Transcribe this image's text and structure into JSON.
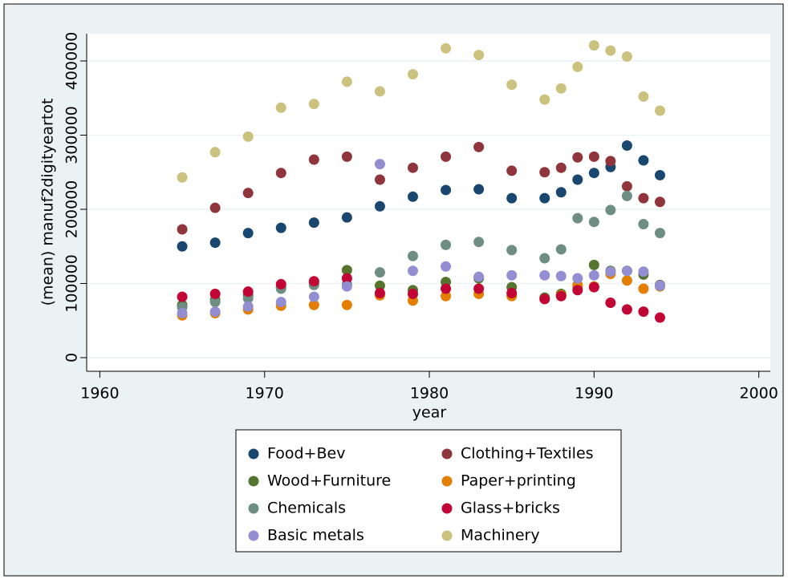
{
  "chart_data": {
    "type": "scatter",
    "x_label": "year",
    "y_label": "(mean) manuf2digityeartot",
    "x": [
      1965,
      1967,
      1969,
      1971,
      1973,
      1975,
      1977,
      1979,
      1981,
      1983,
      1985,
      1987,
      1988,
      1989,
      1990,
      1991,
      1992,
      1993,
      1994
    ],
    "xlim": [
      1959.2,
      2000.7
    ],
    "xticks": [
      1960,
      1970,
      1980,
      1990,
      2000
    ],
    "ylim": [
      -18400,
      436800
    ],
    "yticks": [
      0,
      100000,
      200000,
      300000,
      400000
    ],
    "grid": true,
    "series": [
      {
        "name": "Food+Bev",
        "color": "#1a476f",
        "values": [
          150000,
          155000,
          168000,
          175000,
          182000,
          189000,
          204000,
          217000,
          226000,
          227000,
          215000,
          215000,
          223000,
          240000,
          249000,
          257000,
          286000,
          266000,
          246000
        ]
      },
      {
        "name": "Clothing+Textiles",
        "color": "#90353b",
        "values": [
          173000,
          202000,
          222000,
          249000,
          267000,
          271000,
          240000,
          256000,
          271000,
          284000,
          252000,
          250000,
          256000,
          270000,
          271000,
          265000,
          231000,
          215000,
          210000
        ]
      },
      {
        "name": "Wood+Furniture",
        "color": "#55752f",
        "values": [
          71000,
          78000,
          84000,
          95000,
          100000,
          118000,
          97000,
          91000,
          102000,
          107000,
          95000,
          81000,
          86000,
          96000,
          125000,
          117000,
          117000,
          112000,
          98000
        ]
      },
      {
        "name": "Paper+printing",
        "color": "#e37e00",
        "values": [
          57000,
          60000,
          65000,
          70000,
          71000,
          71000,
          84000,
          77000,
          83000,
          86000,
          83000,
          79000,
          84000,
          98000,
          96000,
          113000,
          104000,
          93000,
          96000
        ]
      },
      {
        "name": "Chemicals",
        "color": "#6e8e84",
        "values": [
          68000,
          75000,
          80000,
          93000,
          98000,
          99000,
          115000,
          137000,
          152000,
          156000,
          145000,
          134000,
          146000,
          188000,
          183000,
          199000,
          218000,
          180000,
          168000
        ]
      },
      {
        "name": "Glass+bricks",
        "color": "#c10534",
        "values": [
          82000,
          86000,
          89000,
          99000,
          103000,
          107000,
          87000,
          86000,
          93000,
          93000,
          87000,
          79000,
          83000,
          91000,
          95000,
          74000,
          65000,
          62000,
          54000
        ]
      },
      {
        "name": "Basic metals",
        "color": "#938dd2",
        "values": [
          60000,
          62000,
          69000,
          75000,
          82000,
          96000,
          261000,
          117000,
          123000,
          109000,
          111000,
          111000,
          110000,
          107000,
          111000,
          116000,
          117000,
          116000,
          97000
        ]
      },
      {
        "name": "Machinery",
        "color": "#cac27e",
        "values": [
          243000,
          277000,
          298000,
          337000,
          342000,
          372000,
          359000,
          382000,
          417000,
          408000,
          368000,
          348000,
          363000,
          392000,
          421000,
          414000,
          406000,
          352000,
          333000
        ]
      }
    ]
  }
}
